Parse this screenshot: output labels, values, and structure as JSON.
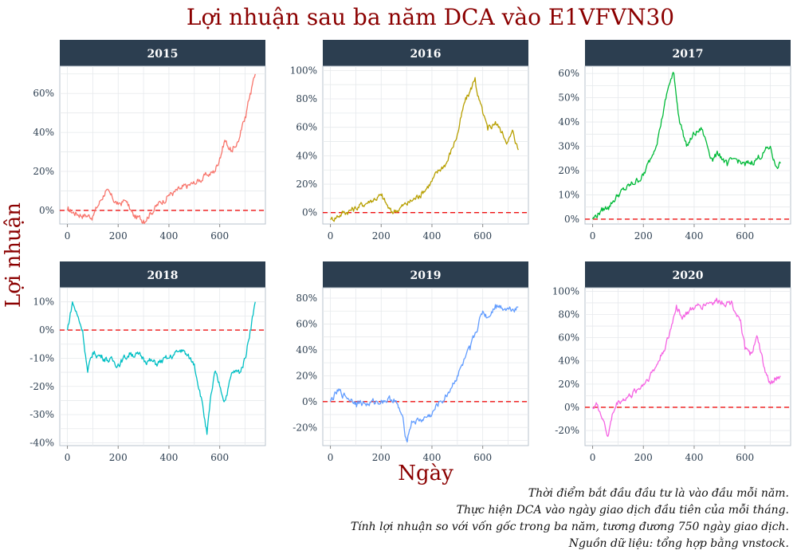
{
  "chart_data": {
    "type": "line",
    "title": "Lợi nhuận sau ba năm DCA vào E1VFVN30",
    "xlabel": "Ngày",
    "ylabel": "Lợi nhuận",
    "reference_line": {
      "y": 0,
      "style": "dashed",
      "color": "#ee1111"
    },
    "grid": true,
    "captions": [
      "Thời điểm bắt đầu đầu tư là vào đầu mỗi năm.",
      "Thực hiện DCA vào ngày giao dịch đầu tiên của mỗi tháng.",
      "Tính lợi nhuận so với vốn gốc trong ba năm, tương đương 750 ngày giao dịch.",
      "Nguồn dữ liệu: tổng hợp bằng vnstock."
    ],
    "panels": [
      {
        "name": "2015",
        "color": "#f8766d",
        "xlim": [
          -30,
          780
        ],
        "ylim": [
          -7,
          74
        ],
        "xticks": [
          0,
          200,
          400,
          600
        ],
        "yticks": [
          0,
          20,
          40,
          60
        ],
        "x": [
          0,
          50,
          100,
          130,
          150,
          200,
          230,
          260,
          300,
          350,
          400,
          450,
          500,
          550,
          580,
          600,
          620,
          650,
          680,
          700,
          720,
          740
        ],
        "y": [
          0,
          -2,
          -3,
          5,
          10,
          3,
          5,
          -3,
          -5,
          2,
          8,
          11,
          14,
          18,
          20,
          27,
          36,
          30,
          38,
          48,
          60,
          70
        ]
      },
      {
        "name": "2016",
        "color": "#b79f00",
        "xlim": [
          -30,
          780
        ],
        "ylim": [
          -8,
          103
        ],
        "xticks": [
          0,
          200,
          400,
          600
        ],
        "yticks": [
          0,
          20,
          40,
          60,
          80,
          100
        ],
        "x": [
          0,
          50,
          100,
          150,
          200,
          240,
          300,
          350,
          400,
          430,
          460,
          500,
          530,
          550,
          570,
          580,
          600,
          620,
          650,
          680,
          700,
          720,
          740
        ],
        "y": [
          -5,
          0,
          3,
          8,
          12,
          0,
          6,
          12,
          22,
          30,
          36,
          55,
          78,
          85,
          95,
          82,
          70,
          58,
          64,
          55,
          50,
          57,
          44
        ]
      },
      {
        "name": "2017",
        "color": "#00ba38",
        "xlim": [
          -30,
          780
        ],
        "ylim": [
          -2,
          63
        ],
        "xticks": [
          0,
          200,
          400,
          600
        ],
        "yticks": [
          0,
          10,
          20,
          30,
          40,
          50,
          60
        ],
        "x": [
          0,
          30,
          60,
          100,
          150,
          200,
          230,
          260,
          280,
          300,
          320,
          340,
          370,
          400,
          430,
          470,
          500,
          530,
          560,
          600,
          650,
          700,
          720,
          740
        ],
        "y": [
          0,
          3,
          5,
          10,
          14,
          18,
          25,
          35,
          45,
          55,
          60,
          42,
          30,
          35,
          37,
          25,
          27,
          22,
          25,
          22,
          25,
          30,
          22,
          23
        ]
      },
      {
        "name": "2018",
        "color": "#00bfc4",
        "xlim": [
          -30,
          780
        ],
        "ylim": [
          -41,
          15
        ],
        "xticks": [
          0,
          200,
          400,
          600
        ],
        "yticks": [
          -40,
          -30,
          -20,
          -10,
          0,
          10
        ],
        "x": [
          0,
          20,
          40,
          60,
          80,
          100,
          150,
          200,
          250,
          300,
          350,
          400,
          450,
          500,
          530,
          550,
          560,
          580,
          600,
          620,
          650,
          680,
          700,
          720,
          740
        ],
        "y": [
          0,
          10,
          5,
          0,
          -15,
          -8,
          -10,
          -12,
          -8,
          -10,
          -12,
          -10,
          -7,
          -12,
          -25,
          -37,
          -28,
          -15,
          -20,
          -25,
          -15,
          -15,
          -10,
          0,
          10
        ]
      },
      {
        "name": "2019",
        "color": "#619cff",
        "xlim": [
          -30,
          780
        ],
        "ylim": [
          -34,
          88
        ],
        "xticks": [
          0,
          200,
          400,
          600
        ],
        "yticks": [
          -20,
          0,
          20,
          40,
          60,
          80
        ],
        "x": [
          0,
          30,
          60,
          100,
          150,
          200,
          250,
          280,
          300,
          320,
          350,
          400,
          430,
          450,
          500,
          550,
          600,
          620,
          650,
          700,
          740
        ],
        "y": [
          0,
          8,
          4,
          0,
          -2,
          1,
          2,
          -10,
          -30,
          -15,
          -15,
          -10,
          0,
          2,
          20,
          40,
          70,
          65,
          75,
          72,
          73
        ]
      },
      {
        "name": "2020",
        "color": "#f564e3",
        "xlim": [
          -30,
          780
        ],
        "ylim": [
          -33,
          103
        ],
        "xticks": [
          0,
          200,
          400,
          600
        ],
        "yticks": [
          -20,
          0,
          20,
          40,
          60,
          80,
          100
        ],
        "x": [
          0,
          20,
          40,
          60,
          80,
          100,
          150,
          200,
          250,
          300,
          330,
          350,
          400,
          450,
          500,
          550,
          580,
          600,
          620,
          650,
          680,
          700,
          720,
          740
        ],
        "y": [
          0,
          2,
          -10,
          -25,
          -5,
          5,
          10,
          20,
          35,
          60,
          88,
          78,
          85,
          90,
          92,
          90,
          75,
          50,
          45,
          60,
          30,
          20,
          25,
          27
        ]
      }
    ]
  }
}
